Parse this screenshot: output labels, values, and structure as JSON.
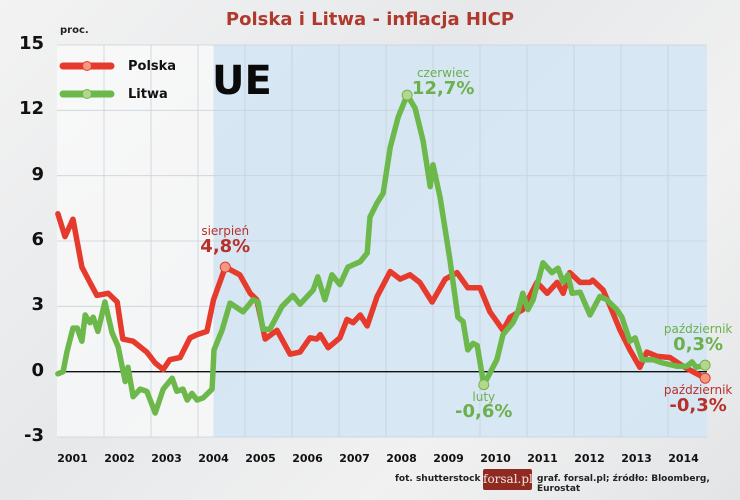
{
  "chart_data": {
    "type": "line",
    "title": "Polska i Litwa - inflacja HICP",
    "ylabel": "proc.",
    "ylim": [
      -3,
      15
    ],
    "yticks": [
      "15",
      "12",
      "9",
      "6",
      "3",
      "0",
      "-3"
    ],
    "xlim": [
      2001.0,
      2014.85
    ],
    "xticks": [
      "2001",
      "2002",
      "2003",
      "2004",
      "2005",
      "2006",
      "2007",
      "2008",
      "2009",
      "2010",
      "2011",
      "2012",
      "2013",
      "2014"
    ],
    "grid": true,
    "legend_position": "top-left",
    "shaded_region": {
      "label": "UE",
      "from": 2004.33,
      "to": 2014.85,
      "color": "#cfe3f2"
    },
    "series": [
      {
        "name": "Polska",
        "color": "#e63a2c",
        "marker_color": "#f29a80",
        "points": [
          [
            2001.02,
            7.25
          ],
          [
            2001.17,
            6.2
          ],
          [
            2001.34,
            7.0
          ],
          [
            2001.53,
            4.8
          ],
          [
            2001.7,
            4.1
          ],
          [
            2001.85,
            3.5
          ],
          [
            2002.09,
            3.6
          ],
          [
            2002.28,
            3.2
          ],
          [
            2002.4,
            1.5
          ],
          [
            2002.62,
            1.4
          ],
          [
            2002.91,
            0.9
          ],
          [
            2003.09,
            0.4
          ],
          [
            2003.26,
            0.1
          ],
          [
            2003.4,
            0.55
          ],
          [
            2003.62,
            0.65
          ],
          [
            2003.83,
            1.55
          ],
          [
            2003.98,
            1.7
          ],
          [
            2004.19,
            1.85
          ],
          [
            2004.33,
            3.3
          ],
          [
            2004.58,
            4.8
          ],
          [
            2004.89,
            4.45
          ],
          [
            2005.11,
            3.6
          ],
          [
            2005.25,
            3.3
          ],
          [
            2005.43,
            1.5
          ],
          [
            2005.68,
            1.9
          ],
          [
            2005.96,
            0.8
          ],
          [
            2006.17,
            0.9
          ],
          [
            2006.38,
            1.55
          ],
          [
            2006.53,
            1.5
          ],
          [
            2006.6,
            1.7
          ],
          [
            2006.77,
            1.1
          ],
          [
            2007.02,
            1.55
          ],
          [
            2007.17,
            2.4
          ],
          [
            2007.3,
            2.25
          ],
          [
            2007.45,
            2.6
          ],
          [
            2007.6,
            2.1
          ],
          [
            2007.81,
            3.45
          ],
          [
            2008.09,
            4.6
          ],
          [
            2008.3,
            4.25
          ],
          [
            2008.51,
            4.45
          ],
          [
            2008.72,
            4.1
          ],
          [
            2008.98,
            3.2
          ],
          [
            2009.26,
            4.25
          ],
          [
            2009.51,
            4.55
          ],
          [
            2009.74,
            3.85
          ],
          [
            2010.0,
            3.85
          ],
          [
            2010.21,
            2.75
          ],
          [
            2010.49,
            1.9
          ],
          [
            2010.64,
            2.5
          ],
          [
            2010.91,
            2.85
          ],
          [
            2011.21,
            4.1
          ],
          [
            2011.43,
            3.6
          ],
          [
            2011.64,
            4.1
          ],
          [
            2011.77,
            3.6
          ],
          [
            2011.91,
            4.55
          ],
          [
            2012.13,
            4.1
          ],
          [
            2012.34,
            4.1
          ],
          [
            2012.4,
            4.2
          ],
          [
            2012.62,
            3.75
          ],
          [
            2012.77,
            3.0
          ],
          [
            2012.98,
            1.9
          ],
          [
            2013.19,
            1.0
          ],
          [
            2013.4,
            0.2
          ],
          [
            2013.55,
            0.9
          ],
          [
            2013.77,
            0.7
          ],
          [
            2014.04,
            0.65
          ],
          [
            2014.32,
            0.25
          ],
          [
            2014.53,
            0.0
          ],
          [
            2014.79,
            -0.3
          ]
        ]
      },
      {
        "name": "Litwa",
        "color": "#6cb84a",
        "marker_color": "#b5d68e",
        "points": [
          [
            2001.02,
            -0.1
          ],
          [
            2001.13,
            0.0
          ],
          [
            2001.21,
            0.9
          ],
          [
            2001.34,
            2.0
          ],
          [
            2001.43,
            2.0
          ],
          [
            2001.53,
            1.4
          ],
          [
            2001.6,
            2.6
          ],
          [
            2001.7,
            2.25
          ],
          [
            2001.77,
            2.5
          ],
          [
            2001.87,
            1.85
          ],
          [
            2002.02,
            3.2
          ],
          [
            2002.17,
            1.8
          ],
          [
            2002.3,
            1.15
          ],
          [
            2002.45,
            -0.45
          ],
          [
            2002.51,
            0.2
          ],
          [
            2002.62,
            -1.15
          ],
          [
            2002.77,
            -0.8
          ],
          [
            2002.91,
            -0.9
          ],
          [
            2003.09,
            -1.9
          ],
          [
            2003.26,
            -0.8
          ],
          [
            2003.45,
            -0.3
          ],
          [
            2003.55,
            -0.9
          ],
          [
            2003.68,
            -0.8
          ],
          [
            2003.77,
            -1.3
          ],
          [
            2003.87,
            -1.0
          ],
          [
            2003.98,
            -1.3
          ],
          [
            2004.11,
            -1.2
          ],
          [
            2004.3,
            -0.8
          ],
          [
            2004.34,
            1.0
          ],
          [
            2004.51,
            1.9
          ],
          [
            2004.68,
            3.15
          ],
          [
            2004.96,
            2.75
          ],
          [
            2005.17,
            3.3
          ],
          [
            2005.28,
            3.2
          ],
          [
            2005.38,
            1.95
          ],
          [
            2005.53,
            1.95
          ],
          [
            2005.79,
            3.0
          ],
          [
            2006.02,
            3.5
          ],
          [
            2006.17,
            3.1
          ],
          [
            2006.45,
            3.75
          ],
          [
            2006.55,
            4.35
          ],
          [
            2006.7,
            3.3
          ],
          [
            2006.85,
            4.45
          ],
          [
            2007.02,
            4.0
          ],
          [
            2007.19,
            4.8
          ],
          [
            2007.45,
            5.05
          ],
          [
            2007.6,
            5.45
          ],
          [
            2007.66,
            7.1
          ],
          [
            2007.81,
            7.75
          ],
          [
            2007.94,
            8.2
          ],
          [
            2008.09,
            10.3
          ],
          [
            2008.26,
            11.7
          ],
          [
            2008.45,
            12.7
          ],
          [
            2008.62,
            12.1
          ],
          [
            2008.79,
            10.6
          ],
          [
            2008.94,
            8.5
          ],
          [
            2009.0,
            9.5
          ],
          [
            2009.15,
            8.0
          ],
          [
            2009.36,
            5.15
          ],
          [
            2009.53,
            2.5
          ],
          [
            2009.64,
            2.3
          ],
          [
            2009.74,
            1.0
          ],
          [
            2009.85,
            1.3
          ],
          [
            2009.94,
            1.2
          ],
          [
            2010.08,
            -0.6
          ],
          [
            2010.36,
            0.55
          ],
          [
            2010.49,
            1.7
          ],
          [
            2010.7,
            2.25
          ],
          [
            2010.8,
            2.7
          ],
          [
            2010.91,
            3.6
          ],
          [
            2011.02,
            2.85
          ],
          [
            2011.13,
            3.3
          ],
          [
            2011.34,
            5.0
          ],
          [
            2011.53,
            4.55
          ],
          [
            2011.66,
            4.75
          ],
          [
            2011.77,
            4.1
          ],
          [
            2011.87,
            4.45
          ],
          [
            2011.96,
            3.6
          ],
          [
            2012.13,
            3.65
          ],
          [
            2012.34,
            2.6
          ],
          [
            2012.55,
            3.45
          ],
          [
            2012.7,
            3.3
          ],
          [
            2012.91,
            2.85
          ],
          [
            2013.02,
            2.5
          ],
          [
            2013.19,
            1.4
          ],
          [
            2013.3,
            1.55
          ],
          [
            2013.45,
            0.55
          ],
          [
            2013.68,
            0.55
          ],
          [
            2013.89,
            0.4
          ],
          [
            2014.19,
            0.25
          ],
          [
            2014.4,
            0.25
          ],
          [
            2014.51,
            0.45
          ],
          [
            2014.6,
            0.2
          ],
          [
            2014.79,
            0.3
          ]
        ]
      }
    ],
    "annotations": [
      {
        "series": "Polska",
        "x": 2004.58,
        "y": 4.8,
        "label": "sierpień",
        "value": "4,8%",
        "placement": "above",
        "color": "#b8302a"
      },
      {
        "series": "Litwa",
        "x": 2008.45,
        "y": 12.7,
        "label": "czerwiec",
        "value": "12,7%",
        "placement": "above-right",
        "color": "#6ab04c"
      },
      {
        "series": "Litwa",
        "x": 2010.08,
        "y": -0.6,
        "label": "luty",
        "value": "-0,6%",
        "placement": "below",
        "color": "#6ab04c"
      },
      {
        "series": "Litwa",
        "x": 2014.79,
        "y": 0.3,
        "label": "październik",
        "value": "0,3%",
        "placement": "above",
        "color": "#6ab04c"
      },
      {
        "series": "Polska",
        "x": 2014.79,
        "y": -0.3,
        "label": "październik",
        "value": "-0,3%",
        "placement": "below",
        "color": "#b8302a"
      }
    ]
  },
  "footer": {
    "photo_credit": "fot. shutterstock",
    "logo_text": "forsal.pl",
    "source": "graf. forsal.pl;  źródło: Bloomberg, Eurostat"
  }
}
